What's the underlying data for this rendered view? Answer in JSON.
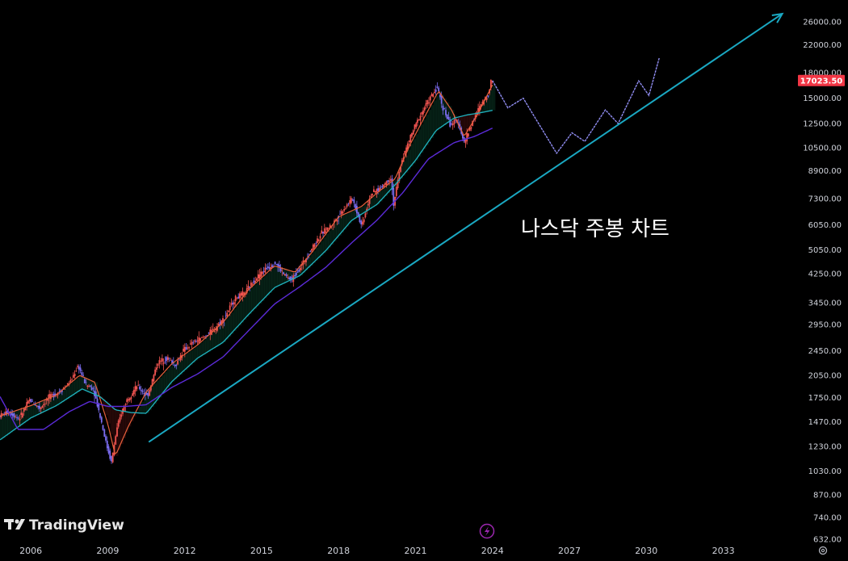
{
  "brand": {
    "name": "TradingView"
  },
  "colors": {
    "background": "#000000",
    "candle_up": "#ef5350",
    "candle_down": "#7b6cf0",
    "ma_short": "#e8613c",
    "ma_mid": "#1fb3c0",
    "ma_long": "#5b2bd8",
    "trendline": "#1aa8c2",
    "price_badge": "#f23645",
    "projection": "#8f8cf0"
  },
  "chart_data": {
    "type": "line",
    "title": "나스닥 주봉 차트",
    "xlabel": "",
    "ylabel": "",
    "y_scale": "log",
    "ylim": [
      632,
      28000
    ],
    "xlim": [
      2004.8,
      2035.5
    ],
    "grid": false,
    "current_price": "17023.50",
    "y_ticks": [
      "26000.00",
      "22000.00",
      "18000.00",
      "15000.00",
      "12500.00",
      "10500.00",
      "8900.00",
      "7300.00",
      "6050.00",
      "5050.00",
      "4250.00",
      "3450.00",
      "2950.00",
      "2450.00",
      "2050.00",
      "1750.00",
      "1470.00",
      "1230.00",
      "1030.00",
      "870.00",
      "740.00",
      "632.00"
    ],
    "x_ticks": [
      "2006",
      "2009",
      "2012",
      "2015",
      "2018",
      "2021",
      "2024",
      "2027",
      "2030",
      "2033"
    ],
    "series": [
      {
        "type": "candlestick",
        "x": [
          2004.8,
          2005.2,
          2005.6,
          2006.0,
          2006.4,
          2006.8,
          2007.2,
          2007.6,
          2007.9,
          2008.2,
          2008.5,
          2008.8,
          2009.0,
          2009.2,
          2009.4,
          2009.6,
          2009.8,
          2010.2,
          2010.6,
          2011.0,
          2011.4,
          2011.7,
          2012.0,
          2012.4,
          2012.8,
          2013.2,
          2013.6,
          2014.0,
          2014.4,
          2014.8,
          2015.2,
          2015.6,
          2015.9,
          2016.2,
          2016.6,
          2017.0,
          2017.4,
          2017.8,
          2018.2,
          2018.6,
          2018.95,
          2019.3,
          2019.7,
          2020.1,
          2020.2,
          2020.5,
          2020.9,
          2021.2,
          2021.5,
          2021.9,
          2022.1,
          2022.4,
          2022.7,
          2022.95,
          2023.3,
          2023.6,
          2023.9,
          2024.0
        ],
        "y": [
          1530,
          1580,
          1500,
          1720,
          1620,
          1760,
          1830,
          1960,
          2200,
          1920,
          1860,
          1480,
          1250,
          1100,
          1380,
          1580,
          1720,
          1900,
          1760,
          2250,
          2320,
          2200,
          2450,
          2600,
          2700,
          2850,
          3100,
          3550,
          3700,
          4100,
          4400,
          4600,
          4250,
          4050,
          4500,
          5100,
          5700,
          6050,
          6700,
          7300,
          6000,
          7500,
          7900,
          8500,
          7000,
          9500,
          11600,
          13100,
          14500,
          16200,
          14200,
          12400,
          12800,
          10900,
          12800,
          14300,
          15500,
          17023.5
        ]
      },
      {
        "name": "",
        "type": "moving_average_short",
        "x": [
          2004.8,
          2006.0,
          2007.0,
          2007.9,
          2008.5,
          2009.0,
          2009.3,
          2009.8,
          2010.5,
          2011.5,
          2012.5,
          2013.5,
          2014.5,
          2015.5,
          2016.3,
          2017.0,
          2018.0,
          2018.9,
          2019.5,
          2020.2,
          2020.8,
          2021.5,
          2021.9,
          2022.4,
          2022.9,
          2023.4,
          2024.0
        ],
        "y": [
          1530,
          1650,
          1780,
          2050,
          1950,
          1450,
          1150,
          1420,
          1820,
          2230,
          2550,
          3000,
          3800,
          4500,
          4300,
          5000,
          6400,
          6900,
          7600,
          8400,
          10800,
          13800,
          15800,
          13800,
          11400,
          13300,
          16500
        ]
      },
      {
        "name": "",
        "type": "moving_average_mid",
        "x": [
          2004.8,
          2006.0,
          2007.0,
          2008.0,
          2008.7,
          2009.3,
          2009.9,
          2010.5,
          2011.5,
          2012.5,
          2013.5,
          2014.5,
          2015.5,
          2016.5,
          2017.5,
          2018.5,
          2019.5,
          2020.2,
          2021.0,
          2021.8,
          2022.5,
          2023.0,
          2023.5,
          2024.0
        ],
        "y": [
          1290,
          1510,
          1650,
          1860,
          1760,
          1600,
          1570,
          1560,
          1960,
          2320,
          2600,
          3180,
          3850,
          4200,
          5020,
          6230,
          7000,
          8050,
          9600,
          11900,
          13000,
          13300,
          13500,
          13750
        ]
      },
      {
        "name": "",
        "type": "moving_average_long",
        "x": [
          2004.8,
          2005.5,
          2006.5,
          2007.5,
          2008.3,
          2009.0,
          2009.7,
          2010.5,
          2011.5,
          2012.5,
          2013.5,
          2014.5,
          2015.5,
          2016.5,
          2017.5,
          2018.5,
          2019.5,
          2020.5,
          2021.5,
          2022.5,
          2023.3,
          2024.0
        ],
        "y": [
          1760,
          1390,
          1390,
          1580,
          1700,
          1640,
          1640,
          1660,
          1880,
          2070,
          2340,
          2830,
          3420,
          3880,
          4450,
          5300,
          6250,
          7600,
          9700,
          10900,
          11400,
          12100
        ]
      },
      {
        "name": "",
        "type": "projection",
        "x": [
          2024.0,
          2024.6,
          2025.2,
          2026.5,
          2027.1,
          2027.6,
          2028.4,
          2028.9,
          2029.7,
          2030.1,
          2030.5
        ],
        "y": [
          17023.5,
          14000,
          15000,
          10100,
          11700,
          11000,
          13800,
          12500,
          17000,
          15300,
          20000
        ]
      },
      {
        "name": "",
        "type": "trendline",
        "x": [
          2010.6,
          2035.3
        ],
        "y": [
          1270,
          27500
        ]
      }
    ]
  }
}
